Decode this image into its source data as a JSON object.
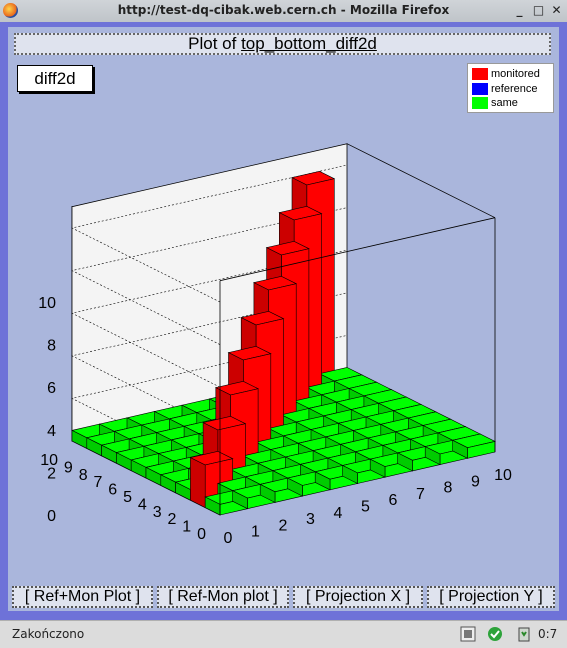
{
  "window": {
    "title": "http://test-dq-cibak.web.cern.ch - Mozilla Firefox"
  },
  "plot": {
    "title_prefix": "Plot of ",
    "title_link": "top_bottom_diff2d",
    "stats_label": "diff2d",
    "legend": [
      {
        "label": "monitored",
        "color": "#ff0000"
      },
      {
        "label": "reference",
        "color": "#0000ff"
      },
      {
        "label": "same",
        "color": "#00ff00"
      }
    ]
  },
  "chart_data": {
    "type": "lego3d",
    "x_ticks": [
      "0",
      "1",
      "2",
      "3",
      "4",
      "5",
      "6",
      "7",
      "8",
      "9",
      "10"
    ],
    "y_ticks": [
      "0",
      "1",
      "2",
      "3",
      "4",
      "5",
      "6",
      "7",
      "8",
      "9",
      "10"
    ],
    "z_ticks": [
      "0",
      "2",
      "4",
      "6",
      "8",
      "10"
    ],
    "zlim": [
      0,
      11
    ],
    "base_value": 0.5,
    "bars": [
      {
        "x": 0,
        "y": 1,
        "z": 2
      },
      {
        "x": 1,
        "y": 2,
        "z": 3
      },
      {
        "x": 2,
        "y": 3,
        "z": 4
      },
      {
        "x": 3,
        "y": 4,
        "z": 5
      },
      {
        "x": 4,
        "y": 5,
        "z": 6
      },
      {
        "x": 5,
        "y": 6,
        "z": 7
      },
      {
        "x": 6,
        "y": 7,
        "z": 8
      },
      {
        "x": 7,
        "y": 8,
        "z": 9
      },
      {
        "x": 8,
        "y": 9,
        "z": 10
      }
    ]
  },
  "buttons": [
    "[ Ref+Mon Plot ]",
    "[ Ref-Mon plot ]",
    "[ Projection X ]",
    "[ Projection Y ]"
  ],
  "status": {
    "text": "Zakończono",
    "time": "0:7"
  }
}
